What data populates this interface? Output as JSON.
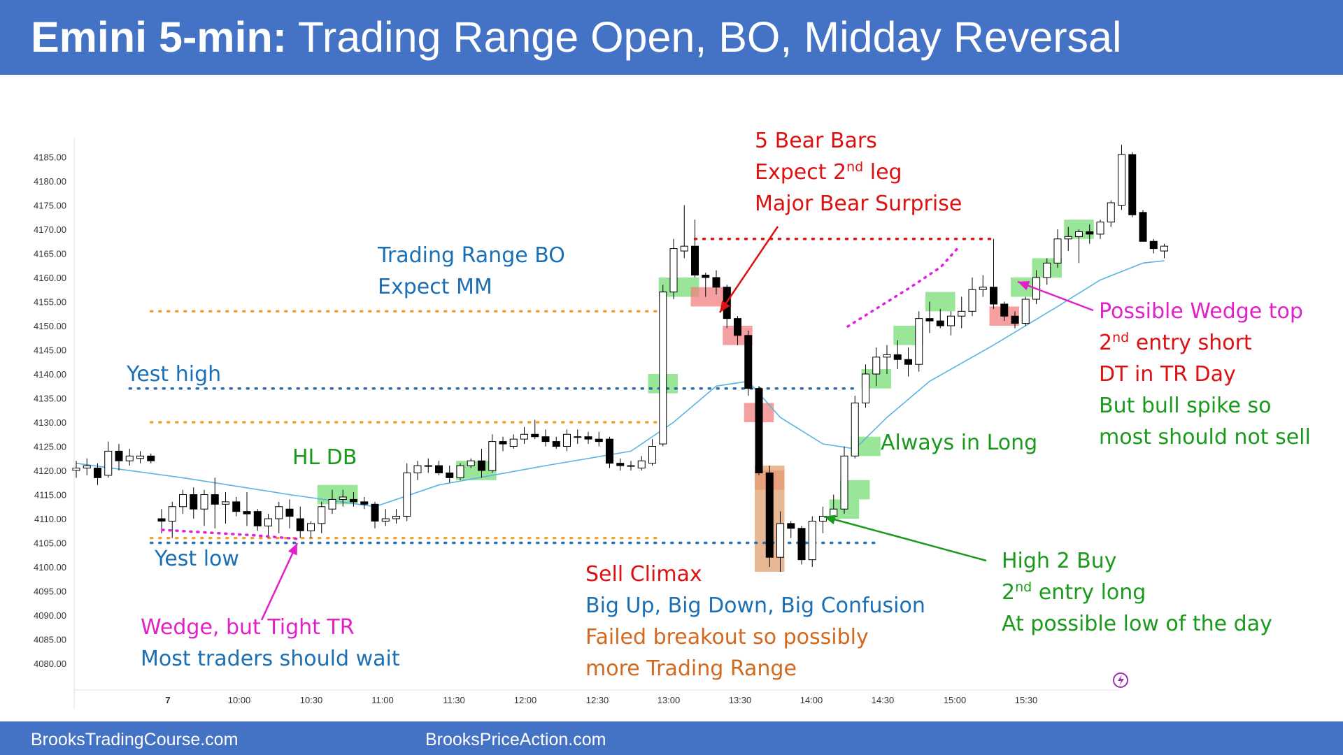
{
  "header": {
    "title_bold": "Emini 5-min:",
    "title_rest": "Trading Range Open, BO, Midday Reversal",
    "background": "#4472c4"
  },
  "footer": {
    "left": "BrooksTradingCourse.com",
    "center": "BrooksPriceAction.com"
  },
  "chart_data": {
    "type": "candlestick",
    "y_ticks": [
      "4185.00",
      "4180.00",
      "4175.00",
      "4170.00",
      "4165.00",
      "4160.00",
      "4155.00",
      "4150.00",
      "4145.00",
      "4140.00",
      "4135.00",
      "4130.00",
      "4125.00",
      "4120.00",
      "4115.00",
      "4110.00",
      "4105.00",
      "4100.00",
      "4095.00",
      "4090.00",
      "4085.00",
      "4080.00"
    ],
    "ylim": [
      4080,
      4185
    ],
    "x_ticks": [
      "7",
      "10:00",
      "10:30",
      "11:00",
      "11:30",
      "12:00",
      "12:30",
      "13:00",
      "13:30",
      "14:00",
      "14:30",
      "15:00",
      "15:30"
    ],
    "grid": false,
    "colors": {
      "bull_candle": "#ffffff",
      "bear_candle": "#000000",
      "ema": "#5ab4e0",
      "buy_zone": "#77dd77",
      "sell_zone": "#f08080",
      "climax_zone": "#e0a070",
      "level_orange": "#f0a030",
      "level_blue": "#2a6fb0",
      "wedge_magenta": "#e020e0",
      "dt_red": "#dd1111"
    },
    "candles": [
      {
        "t": 0,
        "o": 4120.0,
        "h": 4122.0,
        "l": 4118.5,
        "c": 4120.5
      },
      {
        "t": 1,
        "o": 4120.5,
        "h": 4122.5,
        "l": 4119.0,
        "c": 4121.0
      },
      {
        "t": 2,
        "o": 4120.5,
        "h": 4121.5,
        "l": 4117.0,
        "c": 4118.5
      },
      {
        "t": 3,
        "o": 4119.0,
        "h": 4126.0,
        "l": 4118.5,
        "c": 4124.0
      },
      {
        "t": 4,
        "o": 4124.0,
        "h": 4125.5,
        "l": 4120.0,
        "c": 4122.0
      },
      {
        "t": 5,
        "o": 4122.0,
        "h": 4124.5,
        "l": 4121.0,
        "c": 4123.0
      },
      {
        "t": 6,
        "o": 4122.5,
        "h": 4124.0,
        "l": 4121.5,
        "c": 4123.0
      },
      {
        "t": 7,
        "o": 4123.0,
        "h": 4123.5,
        "l": 4121.5,
        "c": 4122.0
      },
      {
        "t": 8,
        "o": 4110.0,
        "h": 4112.0,
        "l": 4107.0,
        "c": 4109.5
      },
      {
        "t": 9,
        "o": 4109.5,
        "h": 4113.5,
        "l": 4106.0,
        "c": 4112.5
      },
      {
        "t": 10,
        "o": 4112.5,
        "h": 4116.0,
        "l": 4111.0,
        "c": 4115.0
      },
      {
        "t": 11,
        "o": 4115.0,
        "h": 4116.5,
        "l": 4110.0,
        "c": 4112.0
      },
      {
        "t": 12,
        "o": 4112.0,
        "h": 4116.0,
        "l": 4108.5,
        "c": 4115.0
      },
      {
        "t": 13,
        "o": 4115.0,
        "h": 4118.5,
        "l": 4108.0,
        "c": 4113.0
      },
      {
        "t": 14,
        "o": 4113.0,
        "h": 4115.5,
        "l": 4109.0,
        "c": 4113.5
      },
      {
        "t": 15,
        "o": 4113.5,
        "h": 4114.5,
        "l": 4110.5,
        "c": 4111.5
      },
      {
        "t": 16,
        "o": 4111.5,
        "h": 4115.5,
        "l": 4108.5,
        "c": 4111.0
      },
      {
        "t": 17,
        "o": 4111.5,
        "h": 4112.0,
        "l": 4107.5,
        "c": 4108.5
      },
      {
        "t": 18,
        "o": 4108.5,
        "h": 4111.0,
        "l": 4106.0,
        "c": 4110.0
      },
      {
        "t": 19,
        "o": 4110.0,
        "h": 4113.5,
        "l": 4107.0,
        "c": 4112.5
      },
      {
        "t": 20,
        "o": 4112.0,
        "h": 4114.0,
        "l": 4108.0,
        "c": 4110.5
      },
      {
        "t": 21,
        "o": 4110.0,
        "h": 4112.5,
        "l": 4106.0,
        "c": 4107.5
      },
      {
        "t": 22,
        "o": 4107.5,
        "h": 4109.5,
        "l": 4106.0,
        "c": 4109.0
      },
      {
        "t": 23,
        "o": 4109.0,
        "h": 4113.5,
        "l": 4107.0,
        "c": 4112.5
      },
      {
        "t": 24,
        "o": 4112.0,
        "h": 4116.0,
        "l": 4111.0,
        "c": 4114.0
      },
      {
        "t": 25,
        "o": 4114.0,
        "h": 4116.0,
        "l": 4112.5,
        "c": 4114.5
      },
      {
        "t": 26,
        "o": 4114.0,
        "h": 4115.5,
        "l": 4112.5,
        "c": 4113.5
      },
      {
        "t": 27,
        "o": 4113.5,
        "h": 4114.5,
        "l": 4112.0,
        "c": 4113.0
      },
      {
        "t": 28,
        "o": 4113.0,
        "h": 4113.5,
        "l": 4108.0,
        "c": 4109.5
      },
      {
        "t": 29,
        "o": 4109.5,
        "h": 4112.0,
        "l": 4108.5,
        "c": 4110.0
      },
      {
        "t": 30,
        "o": 4110.0,
        "h": 4112.0,
        "l": 4109.0,
        "c": 4110.5
      },
      {
        "t": 31,
        "o": 4110.5,
        "h": 4121.5,
        "l": 4109.5,
        "c": 4119.5
      },
      {
        "t": 32,
        "o": 4119.5,
        "h": 4122.0,
        "l": 4118.0,
        "c": 4121.0
      },
      {
        "t": 33,
        "o": 4121.0,
        "h": 4122.5,
        "l": 4119.5,
        "c": 4121.0
      },
      {
        "t": 34,
        "o": 4121.0,
        "h": 4122.0,
        "l": 4119.0,
        "c": 4119.5
      },
      {
        "t": 35,
        "o": 4119.5,
        "h": 4121.0,
        "l": 4117.5,
        "c": 4118.5
      },
      {
        "t": 36,
        "o": 4118.5,
        "h": 4121.5,
        "l": 4118.0,
        "c": 4121.0
      },
      {
        "t": 37,
        "o": 4121.0,
        "h": 4122.5,
        "l": 4120.5,
        "c": 4122.0
      },
      {
        "t": 38,
        "o": 4122.0,
        "h": 4124.5,
        "l": 4118.5,
        "c": 4120.0
      },
      {
        "t": 39,
        "o": 4120.0,
        "h": 4127.5,
        "l": 4119.5,
        "c": 4126.0
      },
      {
        "t": 40,
        "o": 4126.0,
        "h": 4127.0,
        "l": 4124.0,
        "c": 4125.5
      },
      {
        "t": 41,
        "o": 4125.0,
        "h": 4127.5,
        "l": 4124.5,
        "c": 4126.5
      },
      {
        "t": 42,
        "o": 4126.5,
        "h": 4129.0,
        "l": 4125.5,
        "c": 4127.5
      },
      {
        "t": 43,
        "o": 4127.5,
        "h": 4130.5,
        "l": 4126.5,
        "c": 4127.0
      },
      {
        "t": 44,
        "o": 4127.0,
        "h": 4128.5,
        "l": 4125.0,
        "c": 4126.0
      },
      {
        "t": 45,
        "o": 4126.0,
        "h": 4127.0,
        "l": 4124.5,
        "c": 4125.0
      },
      {
        "t": 46,
        "o": 4125.0,
        "h": 4128.5,
        "l": 4124.0,
        "c": 4127.5
      },
      {
        "t": 47,
        "o": 4127.0,
        "h": 4128.5,
        "l": 4125.5,
        "c": 4127.0
      },
      {
        "t": 48,
        "o": 4127.0,
        "h": 4128.0,
        "l": 4125.5,
        "c": 4126.5
      },
      {
        "t": 49,
        "o": 4126.5,
        "h": 4128.0,
        "l": 4125.0,
        "c": 4126.0
      },
      {
        "t": 50,
        "o": 4126.5,
        "h": 4127.0,
        "l": 4120.5,
        "c": 4121.5
      },
      {
        "t": 51,
        "o": 4121.5,
        "h": 4122.5,
        "l": 4120.0,
        "c": 4121.0
      },
      {
        "t": 52,
        "o": 4121.0,
        "h": 4122.0,
        "l": 4120.0,
        "c": 4121.0
      },
      {
        "t": 53,
        "o": 4120.5,
        "h": 4123.0,
        "l": 4120.0,
        "c": 4122.0
      },
      {
        "t": 54,
        "o": 4121.5,
        "h": 4126.5,
        "l": 4121.0,
        "c": 4125.0
      },
      {
        "t": 55,
        "o": 4125.5,
        "h": 4158.5,
        "l": 4125.0,
        "c": 4157.0
      },
      {
        "t": 56,
        "o": 4157.0,
        "h": 4168.0,
        "l": 4155.5,
        "c": 4166.0
      },
      {
        "t": 57,
        "o": 4165.5,
        "h": 4175.0,
        "l": 4164.0,
        "c": 4166.5
      },
      {
        "t": 58,
        "o": 4166.5,
        "h": 4172.0,
        "l": 4160.0,
        "c": 4160.5
      },
      {
        "t": 59,
        "o": 4160.5,
        "h": 4161.0,
        "l": 4156.0,
        "c": 4160.0
      },
      {
        "t": 60,
        "o": 4160.0,
        "h": 4161.5,
        "l": 4156.5,
        "c": 4158.0
      },
      {
        "t": 61,
        "o": 4158.0,
        "h": 4158.5,
        "l": 4149.5,
        "c": 4151.5
      },
      {
        "t": 62,
        "o": 4151.5,
        "h": 4152.0,
        "l": 4146.0,
        "c": 4148.0
      },
      {
        "t": 63,
        "o": 4148.0,
        "h": 4149.0,
        "l": 4135.5,
        "c": 4137.0
      },
      {
        "t": 64,
        "o": 4137.0,
        "h": 4137.5,
        "l": 4119.0,
        "c": 4119.5
      },
      {
        "t": 65,
        "o": 4119.5,
        "h": 4121.0,
        "l": 4100.0,
        "c": 4102.0
      },
      {
        "t": 66,
        "o": 4102.0,
        "h": 4111.5,
        "l": 4099.0,
        "c": 4109.0
      },
      {
        "t": 67,
        "o": 4109.0,
        "h": 4109.5,
        "l": 4106.0,
        "c": 4108.0
      },
      {
        "t": 68,
        "o": 4108.0,
        "h": 4108.5,
        "l": 4100.5,
        "c": 4101.5
      },
      {
        "t": 69,
        "o": 4101.5,
        "h": 4110.5,
        "l": 4100.0,
        "c": 4109.5
      },
      {
        "t": 70,
        "o": 4109.5,
        "h": 4112.5,
        "l": 4107.0,
        "c": 4110.5
      },
      {
        "t": 71,
        "o": 4110.5,
        "h": 4115.0,
        "l": 4109.0,
        "c": 4112.0
      },
      {
        "t": 72,
        "o": 4112.0,
        "h": 4125.0,
        "l": 4111.0,
        "c": 4123.0
      },
      {
        "t": 73,
        "o": 4123.0,
        "h": 4135.5,
        "l": 4122.5,
        "c": 4134.0
      },
      {
        "t": 74,
        "o": 4134.0,
        "h": 4142.0,
        "l": 4133.0,
        "c": 4140.0
      },
      {
        "t": 75,
        "o": 4140.0,
        "h": 4145.5,
        "l": 4137.5,
        "c": 4143.5
      },
      {
        "t": 76,
        "o": 4143.5,
        "h": 4146.0,
        "l": 4140.0,
        "c": 4144.0
      },
      {
        "t": 77,
        "o": 4144.0,
        "h": 4147.0,
        "l": 4141.0,
        "c": 4143.0
      },
      {
        "t": 78,
        "o": 4143.0,
        "h": 4145.5,
        "l": 4139.5,
        "c": 4142.0
      },
      {
        "t": 79,
        "o": 4142.0,
        "h": 4153.0,
        "l": 4140.5,
        "c": 4151.5
      },
      {
        "t": 80,
        "o": 4151.5,
        "h": 4155.0,
        "l": 4148.5,
        "c": 4151.0
      },
      {
        "t": 81,
        "o": 4151.0,
        "h": 4153.5,
        "l": 4149.5,
        "c": 4150.0
      },
      {
        "t": 82,
        "o": 4150.0,
        "h": 4153.0,
        "l": 4148.0,
        "c": 4152.0
      },
      {
        "t": 83,
        "o": 4152.0,
        "h": 4156.0,
        "l": 4149.5,
        "c": 4153.0
      },
      {
        "t": 84,
        "o": 4153.0,
        "h": 4160.0,
        "l": 4152.0,
        "c": 4157.5
      },
      {
        "t": 85,
        "o": 4157.5,
        "h": 4160.5,
        "l": 4156.0,
        "c": 4158.0
      },
      {
        "t": 86,
        "o": 4158.0,
        "h": 4168.0,
        "l": 4153.5,
        "c": 4154.5
      },
      {
        "t": 87,
        "o": 4154.5,
        "h": 4155.0,
        "l": 4151.0,
        "c": 4152.0
      },
      {
        "t": 88,
        "o": 4152.0,
        "h": 4153.0,
        "l": 4149.5,
        "c": 4150.5
      },
      {
        "t": 89,
        "o": 4150.5,
        "h": 4156.0,
        "l": 4150.0,
        "c": 4155.5
      },
      {
        "t": 90,
        "o": 4155.5,
        "h": 4161.5,
        "l": 4154.5,
        "c": 4160.0
      },
      {
        "t": 91,
        "o": 4160.0,
        "h": 4164.0,
        "l": 4158.5,
        "c": 4163.0
      },
      {
        "t": 92,
        "o": 4163.0,
        "h": 4170.0,
        "l": 4162.0,
        "c": 4168.0
      },
      {
        "t": 93,
        "o": 4168.0,
        "h": 4170.5,
        "l": 4165.5,
        "c": 4168.5
      },
      {
        "t": 94,
        "o": 4168.5,
        "h": 4170.0,
        "l": 4163.0,
        "c": 4169.5
      },
      {
        "t": 95,
        "o": 4169.5,
        "h": 4171.0,
        "l": 4167.0,
        "c": 4169.0
      },
      {
        "t": 96,
        "o": 4169.0,
        "h": 4172.0,
        "l": 4168.0,
        "c": 4171.5
      },
      {
        "t": 97,
        "o": 4171.5,
        "h": 4176.0,
        "l": 4170.5,
        "c": 4175.5
      },
      {
        "t": 98,
        "o": 4175.0,
        "h": 4187.5,
        "l": 4174.0,
        "c": 4185.5
      },
      {
        "t": 99,
        "o": 4185.5,
        "h": 4186.0,
        "l": 4172.5,
        "c": 4173.0
      },
      {
        "t": 100,
        "o": 4173.5,
        "h": 4174.0,
        "l": 4167.5,
        "c": 4167.5
      },
      {
        "t": 101,
        "o": 4167.5,
        "h": 4168.0,
        "l": 4165.0,
        "c": 4166.0
      },
      {
        "t": 102,
        "o": 4165.5,
        "h": 4167.0,
        "l": 4164.0,
        "c": 4166.5
      }
    ],
    "ema": [
      [
        0,
        4121.5
      ],
      [
        10,
        4118.5
      ],
      [
        20,
        4115.0
      ],
      [
        28,
        4112.5
      ],
      [
        34,
        4117.0
      ],
      [
        44,
        4121.0
      ],
      [
        52,
        4124.0
      ],
      [
        56,
        4130.0
      ],
      [
        60,
        4137.5
      ],
      [
        63,
        4138.5
      ],
      [
        66,
        4131.0
      ],
      [
        70,
        4125.5
      ],
      [
        73,
        4124.5
      ],
      [
        76,
        4131.0
      ],
      [
        80,
        4138.5
      ],
      [
        86,
        4146.0
      ],
      [
        92,
        4154.0
      ],
      [
        96,
        4159.5
      ],
      [
        100,
        4163.0
      ],
      [
        102,
        4163.5
      ]
    ],
    "levels": [
      {
        "name": "orange-upper",
        "price": 4153.0,
        "from": 7,
        "to": 55
      },
      {
        "name": "orange-middle",
        "price": 4130.0,
        "from": 7,
        "to": 55
      },
      {
        "name": "orange-lower",
        "price": 4106.0,
        "from": 7,
        "to": 55
      },
      {
        "name": "yest-high",
        "price": 4137.0,
        "from": 5,
        "to": 73
      },
      {
        "name": "yest-low",
        "price": 4105.0,
        "from": 7,
        "to": 75
      },
      {
        "name": "double-top",
        "price": 4168.0,
        "from": 58,
        "to": 86
      }
    ],
    "buy_zones": [
      [
        23,
        26,
        4113.0,
        4117.0
      ],
      [
        36,
        39,
        4118.0,
        4122.0
      ],
      [
        54,
        56,
        4136.0,
        4140.0
      ],
      [
        55,
        58,
        4156.0,
        4160.0
      ],
      [
        71,
        73,
        4110.0,
        4114.0
      ],
      [
        72,
        74,
        4114.0,
        4118.0
      ],
      [
        73,
        75,
        4123.0,
        4127.0
      ],
      [
        74,
        76,
        4137.0,
        4141.0
      ],
      [
        77,
        79,
        4146.0,
        4150.0
      ],
      [
        80,
        82,
        4153.0,
        4157.0
      ],
      [
        88,
        90,
        4156.0,
        4160.0
      ],
      [
        90,
        92,
        4160.0,
        4164.0
      ],
      [
        93,
        95,
        4168.0,
        4172.0
      ]
    ],
    "sell_zones": [
      [
        58,
        61,
        4154.0,
        4158.0
      ],
      [
        61,
        63,
        4146.0,
        4150.0
      ],
      [
        63,
        65,
        4130.0,
        4134.0
      ],
      [
        64,
        66,
        4116.0,
        4120.0
      ],
      [
        86,
        88,
        4150.0,
        4154.0
      ]
    ],
    "climax_zone": [
      64,
      66,
      4099.0,
      4121.0
    ],
    "annotations": [
      {
        "id": "trading-range-bo",
        "lines": [
          "Trading Range BO",
          "Expect MM"
        ],
        "color": "#1a6fb5"
      },
      {
        "id": "bear-bars",
        "lines": [
          "5 Bear Bars",
          "Expect 2nd leg",
          "Major Bear Surprise"
        ],
        "color": "#dd1111"
      },
      {
        "id": "yest-high",
        "lines": [
          "Yest high"
        ],
        "color": "#1a6fb5"
      },
      {
        "id": "yest-low",
        "lines": [
          "Yest low"
        ],
        "color": "#1a6fb5"
      },
      {
        "id": "hl-db",
        "lines": [
          "HL DB"
        ],
        "color": "#1a9a1a"
      },
      {
        "id": "always-in-long",
        "lines": [
          "Always in Long"
        ],
        "color": "#1a9a1a"
      },
      {
        "id": "wedge-top-1",
        "lines": [
          "Possible Wedge top"
        ],
        "color": "#e020c8"
      },
      {
        "id": "wedge-top-2",
        "lines": [
          "2nd entry short",
          "DT in TR Day"
        ],
        "color": "#dd1111"
      },
      {
        "id": "wedge-top-3",
        "lines": [
          "But bull spike so",
          "most should not sell"
        ],
        "color": "#1a9a1a"
      },
      {
        "id": "high-2-buy",
        "lines": [
          "High 2 Buy",
          "2nd entry long",
          "At possible low of the day"
        ],
        "color": "#1a9a1a"
      },
      {
        "id": "sell-climax",
        "lines": [
          "Sell Climax"
        ],
        "color": "#dd1111"
      },
      {
        "id": "big-confusion",
        "lines": [
          "Big Up, Big Down, Big Confusion"
        ],
        "color": "#1a6fb5"
      },
      {
        "id": "failed-breakout",
        "lines": [
          "Failed breakout so possibly",
          "more Trading Range"
        ],
        "color": "#d2691e"
      },
      {
        "id": "wedge-tight-tr",
        "lines": [
          "Wedge, but Tight TR"
        ],
        "color": "#e020c8"
      },
      {
        "id": "most-traders-wait",
        "lines": [
          "Most traders should wait"
        ],
        "color": "#1a6fb5"
      }
    ]
  }
}
